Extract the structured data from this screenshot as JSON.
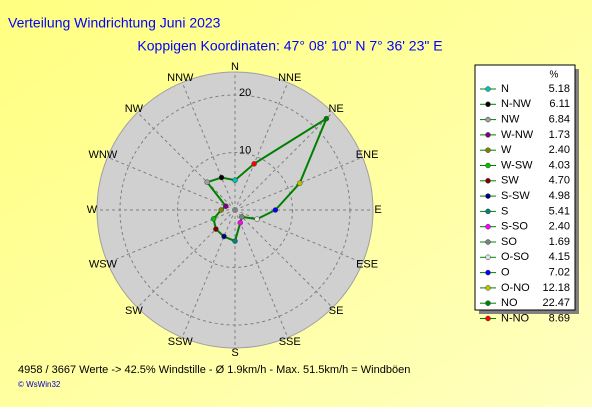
{
  "chart_data": {
    "type": "radar",
    "title": "Verteilung Windrichtung   Juni 2023",
    "subtitle": "Koppigen  Koordinaten: 47° 08' 10\" N  7° 36' 23\" E",
    "axis_labels": [
      "N",
      "NNE",
      "NE",
      "ENE",
      "E",
      "ESE",
      "SE",
      "SSE",
      "S",
      "SSW",
      "SW",
      "WSW",
      "W",
      "WNW",
      "NW",
      "NNW"
    ],
    "rlim": [
      0,
      24
    ],
    "rticks": [
      10,
      20
    ],
    "line_color": "#008000",
    "legend_header": "%",
    "categories": [
      "N",
      "N-NW",
      "NW",
      "W-NW",
      "W",
      "W-SW",
      "SW",
      "S-SW",
      "S",
      "S-SO",
      "SO",
      "O-SO",
      "O",
      "O-NO",
      "NO",
      "N-NO"
    ],
    "values": [
      5.18,
      6.11,
      6.84,
      1.73,
      2.4,
      4.03,
      4.7,
      4.98,
      5.41,
      2.4,
      1.69,
      4.15,
      7.02,
      12.18,
      22.47,
      8.69
    ],
    "value_labels": [
      "5.18",
      "6.11",
      "6.84",
      "1.73",
      "2.40",
      "4.03",
      "4.70",
      "4.98",
      "5.41",
      "2.40",
      "1.69",
      "4.15",
      "7.02",
      "12.18",
      "22.47",
      "8.69"
    ],
    "colors": [
      "#00c0c0",
      "#000000",
      "#a0a0a0",
      "#800080",
      "#808000",
      "#00c000",
      "#800000",
      "#000080",
      "#008080",
      "#ff00ff",
      "#808080",
      "#e0e0e0",
      "#0000ff",
      "#c0c000",
      "#008000",
      "#ff0000"
    ],
    "footer": "4958 / 3667 Werte  -> 42.5% Windstille   -   Ø 1.9km/h  -  Max. 51.5km/h = Windböen",
    "copyright": "© WsWin32"
  }
}
